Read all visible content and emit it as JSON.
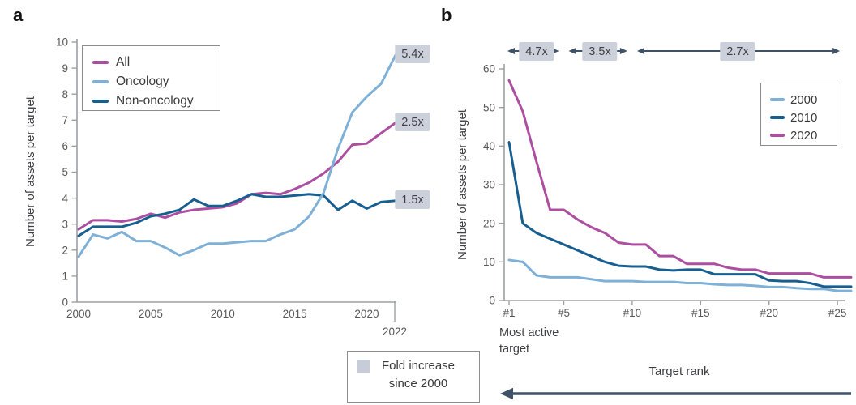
{
  "panels": {
    "a": {
      "label": "a"
    },
    "b": {
      "label": "b"
    }
  },
  "colors": {
    "magenta": "#ad4fa0",
    "light_blue": "#7fb0d7",
    "dark_blue": "#175e91",
    "arrow": "#3f5268",
    "badge_bg": "#cbd0db",
    "axis": "#9da0a3",
    "tick_text": "#58595b"
  },
  "fold_legend": {
    "line1": "Fold increase",
    "line2": "since 2000",
    "swatch_color": "#c7ccd8"
  },
  "chart_data": [
    {
      "type": "line",
      "panel": "a",
      "title": "",
      "xlabel": "",
      "ylabel": "Number of assets per target",
      "ylim": [
        0,
        10
      ],
      "yticks": [
        0,
        1,
        2,
        3,
        4,
        5,
        6,
        7,
        8,
        9,
        10
      ],
      "xticks": [
        2000,
        2005,
        2010,
        2015,
        2020
      ],
      "xtick_end": "2022",
      "x": [
        2000,
        2001,
        2002,
        2003,
        2004,
        2005,
        2006,
        2007,
        2008,
        2009,
        2010,
        2011,
        2012,
        2013,
        2014,
        2015,
        2016,
        2017,
        2018,
        2019,
        2020,
        2021,
        2022
      ],
      "series": [
        {
          "name": "All",
          "color": "#ad4fa0",
          "values": [
            2.8,
            3.15,
            3.15,
            3.1,
            3.2,
            3.4,
            3.25,
            3.45,
            3.55,
            3.6,
            3.65,
            3.8,
            4.15,
            4.2,
            4.15,
            4.35,
            4.6,
            4.95,
            5.4,
            6.05,
            6.1,
            6.5,
            6.9
          ]
        },
        {
          "name": "Oncology",
          "color": "#7fb0d7",
          "values": [
            1.75,
            2.6,
            2.45,
            2.7,
            2.35,
            2.35,
            2.1,
            1.8,
            2.0,
            2.25,
            2.25,
            2.3,
            2.35,
            2.35,
            2.6,
            2.8,
            3.3,
            4.2,
            5.9,
            7.3,
            7.9,
            8.4,
            9.5
          ]
        },
        {
          "name": "Non-oncology",
          "color": "#175e91",
          "values": [
            2.55,
            2.9,
            2.9,
            2.9,
            3.05,
            3.3,
            3.4,
            3.55,
            3.95,
            3.7,
            3.7,
            3.9,
            4.15,
            4.05,
            4.05,
            4.1,
            4.15,
            4.1,
            3.55,
            3.9,
            3.6,
            3.85,
            3.9
          ]
        }
      ],
      "annotations": [
        {
          "text": "5.4x",
          "series": "Oncology"
        },
        {
          "text": "2.5x",
          "series": "All"
        },
        {
          "text": "1.5x",
          "series": "Non-oncology"
        }
      ]
    },
    {
      "type": "line",
      "panel": "b",
      "title": "",
      "xlabel": "Target rank",
      "x_axis_note": "Most active target",
      "ylabel": "Number of assets per target",
      "ylim": [
        0,
        60
      ],
      "yticks": [
        0,
        10,
        20,
        30,
        40,
        50,
        60
      ],
      "xticks": [
        {
          "rank": 1,
          "label": "#1"
        },
        {
          "rank": 5,
          "label": "#5"
        },
        {
          "rank": 10,
          "label": "#10"
        },
        {
          "rank": 15,
          "label": "#15"
        },
        {
          "rank": 20,
          "label": "#20"
        },
        {
          "rank": 25,
          "label": "#25"
        }
      ],
      "x": [
        1,
        2,
        3,
        4,
        5,
        6,
        7,
        8,
        9,
        10,
        11,
        12,
        13,
        14,
        15,
        16,
        17,
        18,
        19,
        20,
        21,
        22,
        23,
        24,
        25,
        26
      ],
      "series": [
        {
          "name": "2000",
          "color": "#7fb0d7",
          "values": [
            10.5,
            10,
            6.5,
            6,
            6,
            6,
            5.5,
            5,
            5,
            5,
            4.8,
            4.8,
            4.8,
            4.5,
            4.5,
            4.2,
            4,
            4,
            3.8,
            3.5,
            3.5,
            3.2,
            3,
            3,
            2.5,
            2.5
          ]
        },
        {
          "name": "2010",
          "color": "#175e91",
          "values": [
            41,
            20,
            17.5,
            16,
            14.5,
            13,
            11.5,
            10,
            9,
            8.8,
            8.8,
            8,
            7.8,
            8,
            8,
            6.8,
            6.8,
            6.8,
            6.8,
            5.2,
            5,
            5,
            4.5,
            3.6,
            3.6,
            3.6
          ]
        },
        {
          "name": "2020",
          "color": "#ad4fa0",
          "values": [
            57,
            49,
            36,
            23.5,
            23.5,
            21,
            19,
            17.5,
            15,
            14.5,
            14.5,
            11.5,
            11.5,
            9.5,
            9.5,
            9.5,
            8.5,
            8,
            8,
            7,
            7,
            7,
            7,
            6,
            6,
            6
          ]
        }
      ],
      "fold_arrows": [
        {
          "text": "4.7x",
          "from_rank": 1,
          "to_rank": 5
        },
        {
          "text": "3.5x",
          "from_rank": 5,
          "to_rank": 10
        },
        {
          "text": "2.7x",
          "from_rank": 10,
          "to_rank": 25
        }
      ]
    }
  ]
}
